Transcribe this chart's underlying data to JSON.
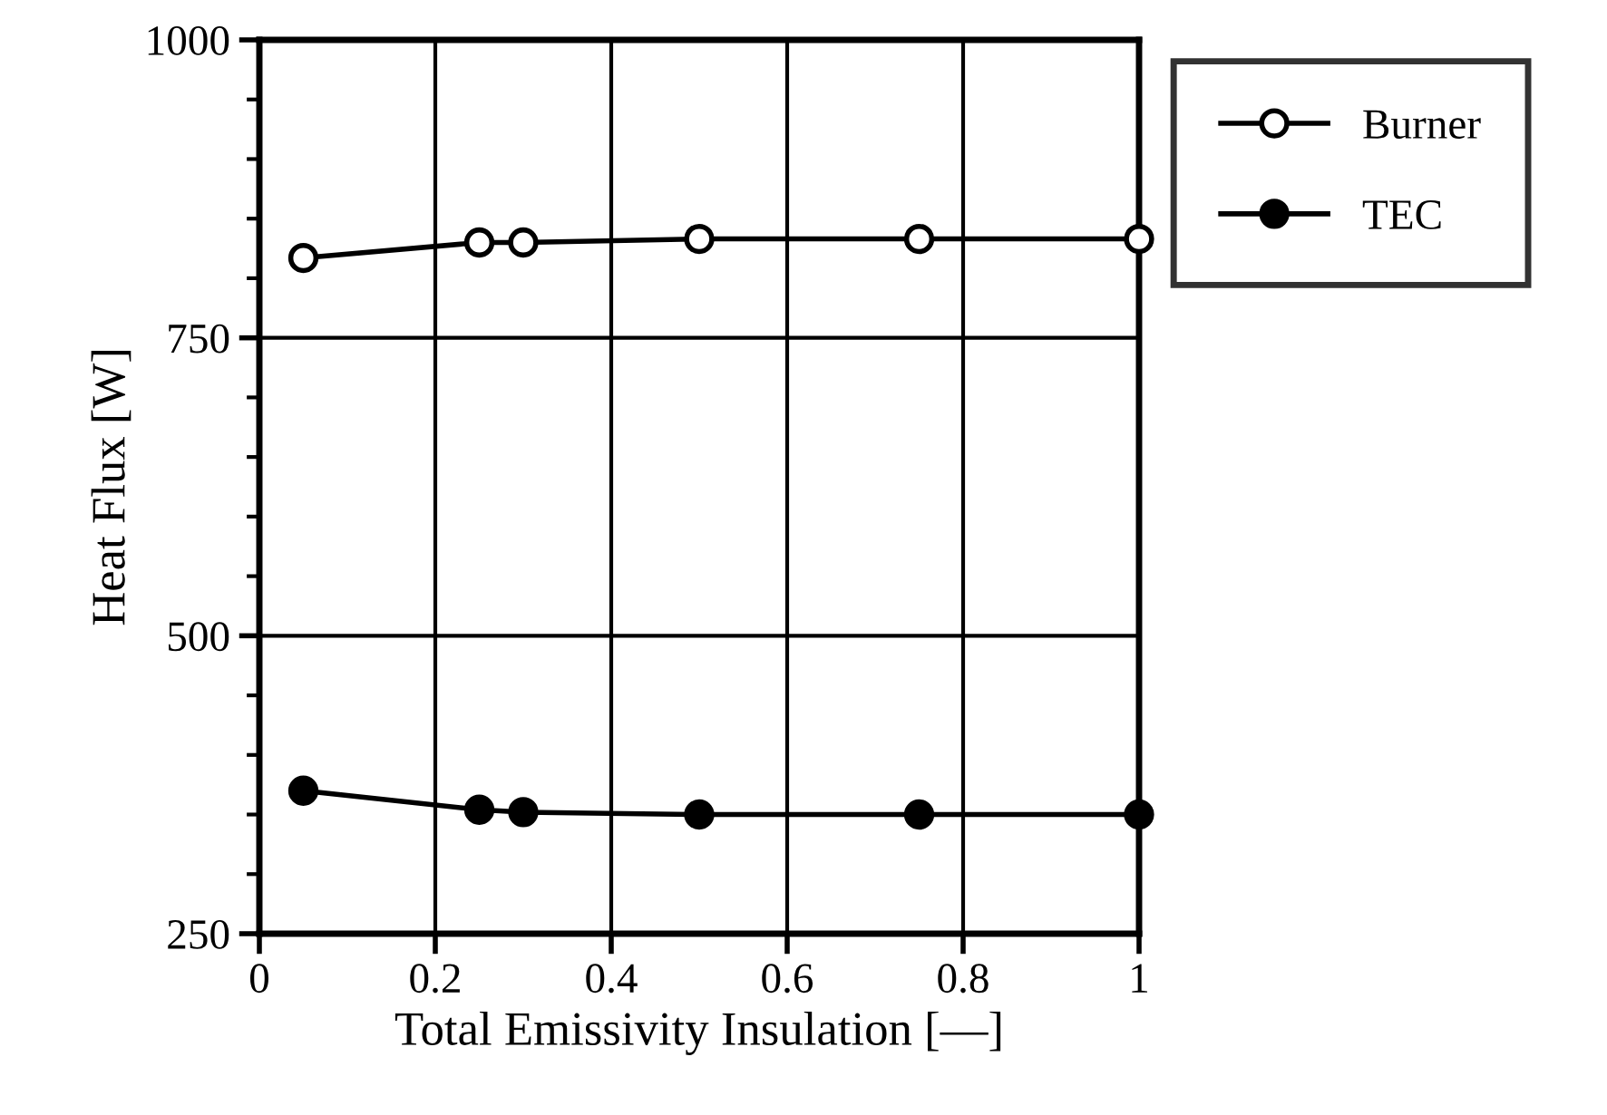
{
  "chart_data": {
    "type": "line",
    "xlabel": "Total Emissivity Insulation [—]",
    "ylabel": "Heat Flux [W]",
    "x": [
      0.05,
      0.25,
      0.3,
      0.5,
      0.75,
      1.0
    ],
    "series": [
      {
        "name": "Burner",
        "color": "#000000",
        "marker": "circle",
        "values": [
          817,
          830,
          830,
          833,
          833,
          833
        ]
      },
      {
        "name": "TEC",
        "color": "#000000",
        "marker": "circle",
        "values": [
          370,
          354,
          352,
          350,
          350,
          350
        ]
      }
    ],
    "xlim": [
      0,
      1
    ],
    "xticks": [
      0,
      0.2,
      0.4,
      0.6,
      0.8,
      1
    ],
    "ylim": [
      250,
      1000
    ],
    "yticks": [
      250,
      {
        "value": 300,
        "label": null
      },
      {
        "value": 350,
        "label": null
      },
      {
        "value": 400,
        "label": null
      },
      {
        "value": 450,
        "label": null
      },
      500,
      {
        "value": 550,
        "label": null
      },
      {
        "value": 600,
        "label": null
      },
      {
        "value": 650,
        "label": null
      },
      {
        "value": 700,
        "label": null
      },
      750,
      {
        "value": 800,
        "label": null
      },
      {
        "value": 850,
        "label": null
      },
      {
        "value": 900,
        "label": null
      },
      {
        "value": 950,
        "label": null
      },
      1000
    ],
    "grid": true,
    "legend": "top right",
    "line_style": "solid"
  }
}
